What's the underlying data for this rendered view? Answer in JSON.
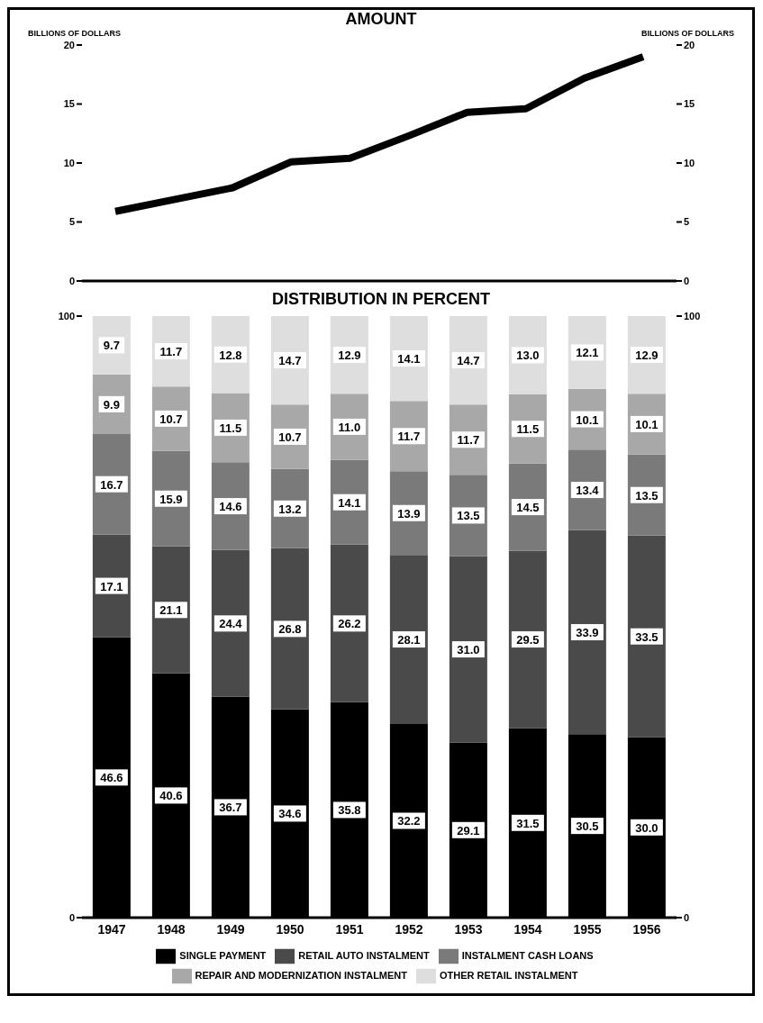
{
  "chart_data": [
    {
      "type": "line",
      "title": "AMOUNT",
      "ylabel": "BILLIONS OF DOLLARS",
      "y2label": "BILLIONS OF DOLLARS",
      "categories": [
        "1947",
        "1948",
        "1949",
        "1950",
        "1951",
        "1952",
        "1953",
        "1954",
        "1955",
        "1956"
      ],
      "series": [
        {
          "color": "#000000",
          "values": [
            5.9,
            6.9,
            7.9,
            10.1,
            10.4,
            12.3,
            14.3,
            14.6,
            17.2,
            19.0
          ]
        }
      ],
      "ylim": [
        0,
        20
      ],
      "yticks": [
        0,
        5,
        10,
        15,
        20
      ],
      "y2lim": [
        0,
        20
      ],
      "y2ticks": [
        0,
        5,
        10,
        15,
        20
      ],
      "tick_labels": "y",
      "grid": false,
      "legend": false,
      "marker": "none",
      "line_style": "solid"
    },
    {
      "type": "bar",
      "title": "DISTRIBUTION IN PERCENT",
      "stacked": true,
      "categories": [
        "1947",
        "1948",
        "1949",
        "1950",
        "1951",
        "1952",
        "1953",
        "1954",
        "1955",
        "1956"
      ],
      "series": [
        {
          "name": "SINGLE PAYMENT",
          "color": "#000000",
          "values": [
            46.6,
            40.6,
            36.7,
            34.6,
            35.8,
            32.2,
            29.1,
            31.5,
            30.5,
            30.0
          ],
          "value_labels": [
            "46.6",
            "40.6",
            "36.7",
            "34.6",
            "35.8",
            "32.2",
            "29.1",
            "31.5",
            "30.5",
            "30.0"
          ]
        },
        {
          "name": "RETAIL AUTO INSTALMENT",
          "color": "#4a4a4a",
          "values": [
            17.1,
            21.1,
            24.4,
            26.8,
            26.2,
            28.1,
            31.0,
            29.5,
            33.9,
            33.5
          ],
          "value_labels": [
            "17.1",
            "21.1",
            "24.4",
            "26.8",
            "26.2",
            "28.1",
            "31.0",
            "29.5",
            "33.9",
            "33.5"
          ]
        },
        {
          "name": "INSTALMENT CASH LOANS",
          "color": "#7a7a7a",
          "values": [
            16.7,
            15.9,
            14.6,
            13.2,
            14.1,
            13.9,
            13.5,
            14.5,
            13.4,
            13.5
          ],
          "value_labels": [
            "16.7",
            "15.9",
            "14.6",
            "13.2",
            "14.1",
            "13.9",
            "13.5",
            "14.5",
            "13.4",
            "13.5"
          ]
        },
        {
          "name": "REPAIR AND MODERNIZATION INSTALMENT",
          "color": "#a8a8a8",
          "values": [
            9.9,
            10.7,
            11.5,
            10.7,
            11.0,
            11.7,
            11.7,
            11.5,
            10.1,
            10.1
          ],
          "value_labels": [
            "9.9",
            "10.7",
            "11.5",
            "10.7",
            "11.0",
            "11.7",
            "11.7",
            "11.5",
            "10.1",
            "10.1"
          ]
        },
        {
          "name": "OTHER RETAIL INSTALMENT",
          "color": "#dedede",
          "values": [
            9.7,
            11.7,
            12.8,
            14.7,
            12.9,
            14.1,
            14.7,
            13.0,
            12.1,
            12.9
          ],
          "value_labels": [
            "9.7",
            "11.7",
            "12.8",
            "14.7",
            "12.9",
            "14.1",
            "14.7",
            "13.0",
            "12.1",
            "12.9"
          ]
        }
      ],
      "ylim": [
        0,
        100
      ],
      "yticks": [
        0,
        100
      ],
      "y2lim": [
        0,
        100
      ],
      "y2ticks": [
        0,
        100
      ],
      "grid": false,
      "legend": "bottom"
    }
  ]
}
